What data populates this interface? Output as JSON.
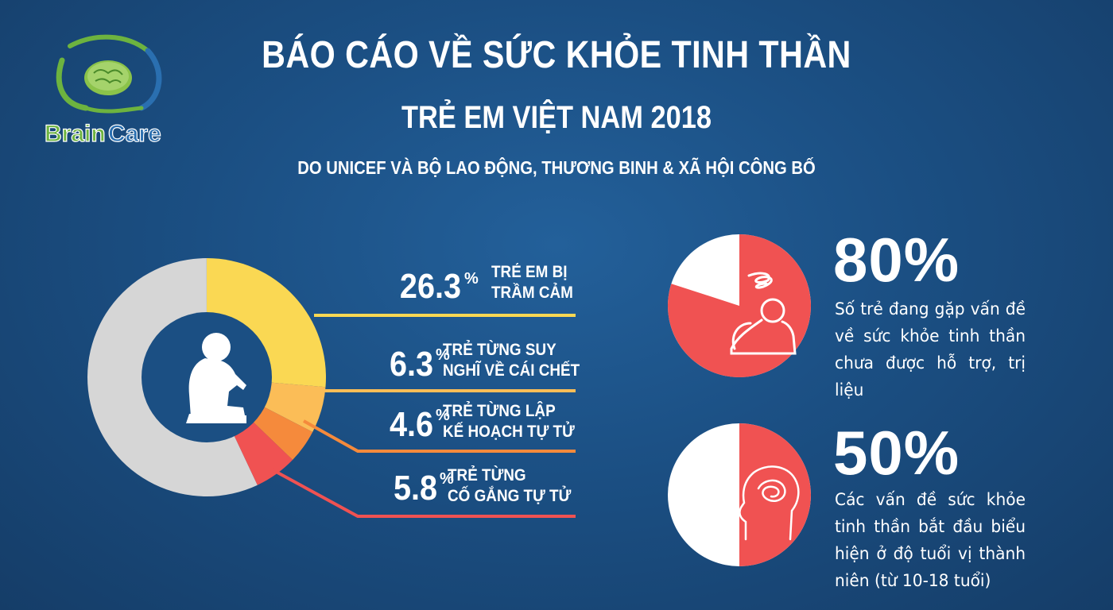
{
  "header": {
    "title": "BÁO CÁO VỀ SỨC KHỎE TINH THẦN",
    "subtitle": "TRẺ EM VIỆT NAM 2018",
    "source": "DO UNICEF VÀ BỘ LAO ĐỘNG, THƯƠNG BINH & XÃ HỘI CÔNG BỐ"
  },
  "logo": {
    "text_part1": "Brain",
    "text_part2": "Care",
    "color_green": "#6db33f",
    "color_blue": "#2a6fb0"
  },
  "colors": {
    "yellow": "#fad853",
    "light_orange": "#fbbd57",
    "orange": "#f58a3c",
    "red": "#f05252",
    "grey": "#d6d6d6",
    "navy": "#1b4f83",
    "white": "#ffffff"
  },
  "chart_data": [
    {
      "type": "pie",
      "title": "",
      "categories": [
        "TRẺ EM BỊ TRẦM CẢM",
        "TRẺ TỪNG SUY NGHĨ VỀ CÁI CHẾT",
        "TRẺ TỪNG LẬP KẾ HOẠCH TỰ TỬ",
        "TRẺ TỪNG CỐ GẮNG TỰ TỬ"
      ],
      "values": [
        26.3,
        6.3,
        4.6,
        5.8
      ],
      "unit": "%",
      "style": "donut"
    },
    {
      "type": "pie",
      "categories": [
        "Số trẻ đang gặp vấn đề về sức khỏe tinh thần chưa được hỗ trợ, trị liệu"
      ],
      "values": [
        80
      ],
      "unit": "%"
    },
    {
      "type": "pie",
      "categories": [
        "Các vấn đề sức khỏe tinh thần bắt đầu biểu hiện ở độ tuổi vị thành niên (từ 10-18 tuổi)"
      ],
      "values": [
        50
      ],
      "unit": "%"
    }
  ],
  "stats": [
    {
      "value": "26.3",
      "unit": "%",
      "label_line1": "TRẺ EM BỊ",
      "label_line2": "TRẦM CẢM"
    },
    {
      "value": "6.3",
      "unit": "%",
      "label_line1": "TRẺ TỪNG SUY",
      "label_line2": "NGHĨ VỀ CÁI CHẾT"
    },
    {
      "value": "4.6",
      "unit": "%",
      "label_line1": "TRẺ TỪNG LẬP",
      "label_line2": "KẾ HOẠCH TỰ TỬ"
    },
    {
      "value": "5.8",
      "unit": "%",
      "label_line1": "TRẺ TỪNG",
      "label_line2": "CỐ GẮNG TỰ TỬ"
    }
  ],
  "facts": [
    {
      "percent": "80%",
      "description": "Số trẻ đang gặp vấn đề về sức khỏe tinh thần chưa được hỗ trợ, trị liệu",
      "icon": "stressed-person-icon"
    },
    {
      "percent": "50%",
      "description": "Các vấn đề sức khỏe tinh thần bắt đầu biểu hiện ở độ tuổi vị thành niên (từ 10-18 tuổi)",
      "icon": "tangled-mind-head-icon"
    }
  ]
}
